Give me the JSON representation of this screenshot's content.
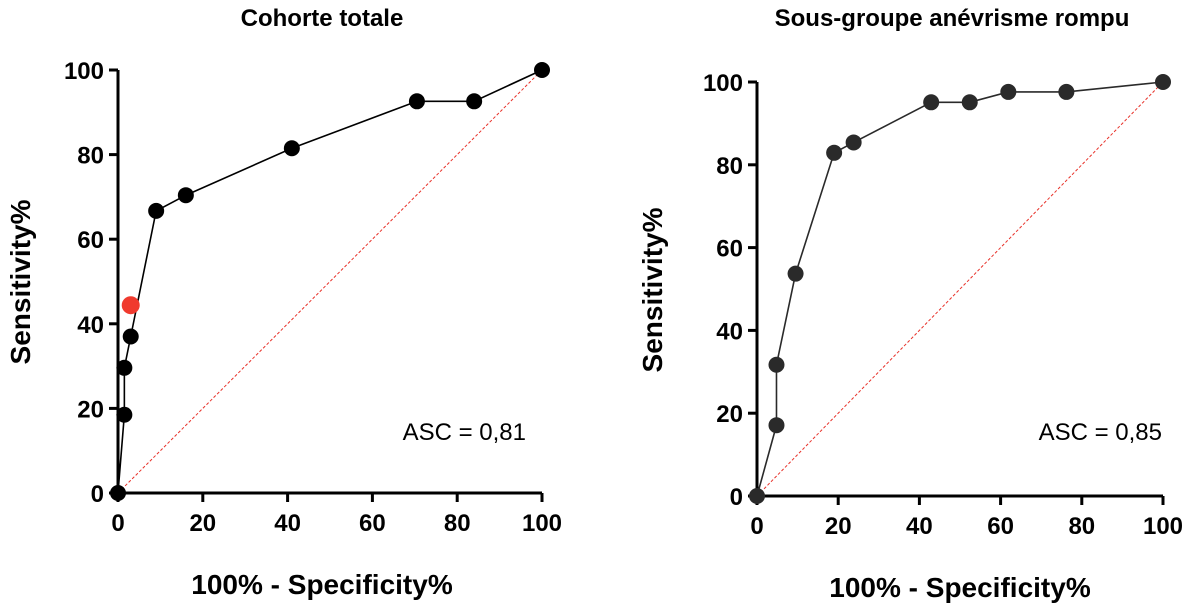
{
  "chart_data": [
    {
      "type": "line",
      "title": "Cohorte totale",
      "xlabel": "100% - Specificity%",
      "ylabel": "Sensitivity%",
      "xlim": [
        0,
        100
      ],
      "ylim": [
        0,
        100
      ],
      "xticks": [
        "0",
        "20",
        "40",
        "60",
        "80",
        "100"
      ],
      "yticks": [
        "0",
        "20",
        "40",
        "60",
        "80",
        "100"
      ],
      "annotation": "ASC = 0,81",
      "grid": false,
      "series": [
        {
          "points": [
            [
              0,
              0
            ],
            [
              1.5,
              18.5
            ],
            [
              1.5,
              29.6
            ],
            [
              3,
              37
            ],
            [
              9,
              66.7
            ],
            [
              16,
              70.4
            ],
            [
              41,
              81.5
            ],
            [
              70.5,
              92.6
            ],
            [
              84,
              92.6
            ],
            [
              100,
              100
            ]
          ],
          "color": "#000000"
        }
      ],
      "highlight_point": {
        "x": 3,
        "y": 44.4,
        "color": "#f03a2e"
      },
      "reference_line": {
        "from": [
          0,
          0
        ],
        "to": [
          100,
          100
        ],
        "color": "#e8322a"
      }
    },
    {
      "type": "line",
      "title": "Sous-groupe anévrisme rompu",
      "xlabel": "100% - Specificity%",
      "ylabel": "Sensitivity%",
      "xlim": [
        0,
        100
      ],
      "ylim": [
        0,
        100
      ],
      "xticks": [
        "0",
        "20",
        "40",
        "60",
        "80",
        "100"
      ],
      "yticks": [
        "0",
        "20",
        "40",
        "60",
        "80",
        "100"
      ],
      "annotation": "ASC = 0,85",
      "grid": false,
      "series": [
        {
          "points": [
            [
              0,
              0
            ],
            [
              4.8,
              17.1
            ],
            [
              4.8,
              31.7
            ],
            [
              9.5,
              53.7
            ],
            [
              19,
              82.9
            ],
            [
              23.8,
              85.4
            ],
            [
              42.9,
              95.1
            ],
            [
              52.4,
              95.1
            ],
            [
              61.9,
              97.6
            ],
            [
              76.2,
              97.6
            ],
            [
              100,
              100
            ]
          ],
          "color": "#2a2a2a"
        }
      ],
      "reference_line": {
        "from": [
          0,
          0
        ],
        "to": [
          100,
          100
        ],
        "color": "#e8322a"
      }
    }
  ]
}
